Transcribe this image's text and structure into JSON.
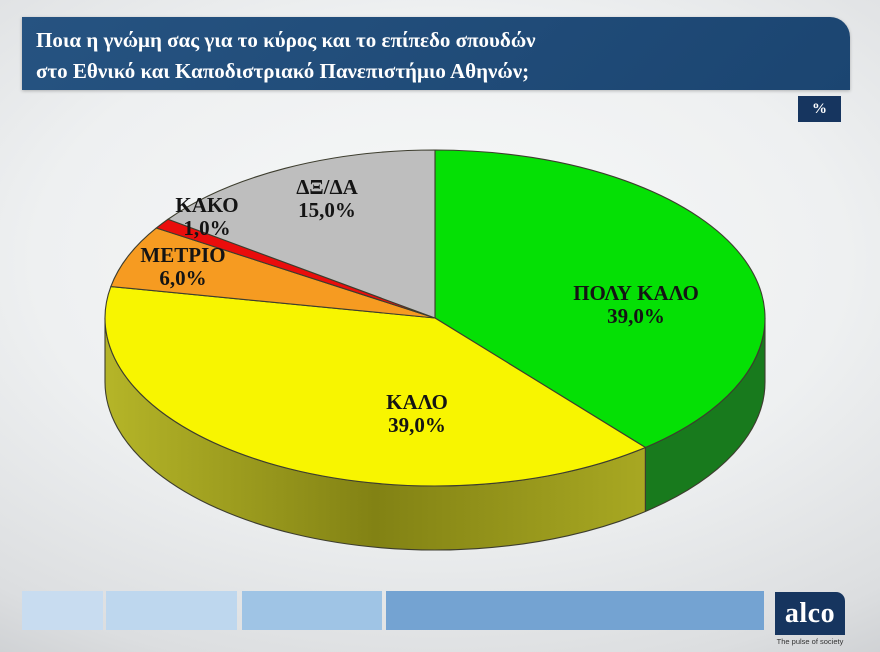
{
  "header": {
    "lines": [
      "Ποια η γνώμη σας για το κύρος και το επίπεδο σπουδών",
      "στο Εθνικό και Καποδιστριακό Πανεπιστήμιο Αθηνών;"
    ],
    "unit_badge": "%"
  },
  "chart_data": {
    "type": "pie",
    "style": "3d",
    "start_angle_deg": 90,
    "direction": "clockwise",
    "unit": "%",
    "slices": [
      {
        "label": "ΠΟΛΥ ΚΑΛΟ",
        "value": 39.0,
        "value_label": "39,0%",
        "color": "#05e005",
        "side_color": "#187a1d"
      },
      {
        "label": "ΚΑΛΟ",
        "value": 39.0,
        "value_label": "39,0%",
        "color": "#f8f500",
        "side_color": [
          "#b5b528",
          "#828214",
          "#a8a822"
        ]
      },
      {
        "label": "ΜΕΤΡΙΟ",
        "value": 6.0,
        "value_label": "6,0%",
        "color": "#f69b21"
      },
      {
        "label": "ΚΑΚΟ",
        "value": 1.0,
        "value_label": "1,0%",
        "color": "#ea0d0c"
      },
      {
        "label": "ΔΞ/ΔΑ",
        "value": 15.0,
        "value_label": "15,0%",
        "color": "#bebebe"
      }
    ]
  },
  "footer": {
    "brand": "alco",
    "tagline": "The pulse of society",
    "segment_colors": [
      "#c8dcf0",
      "#bed7ee",
      "#9fc4e5",
      "#74a3d2"
    ],
    "brand_bg": "#16355f"
  },
  "colors": {
    "header_bg": "#1d4875",
    "badge_bg": "#16355f",
    "slice_outline": "#3d3d2e"
  }
}
